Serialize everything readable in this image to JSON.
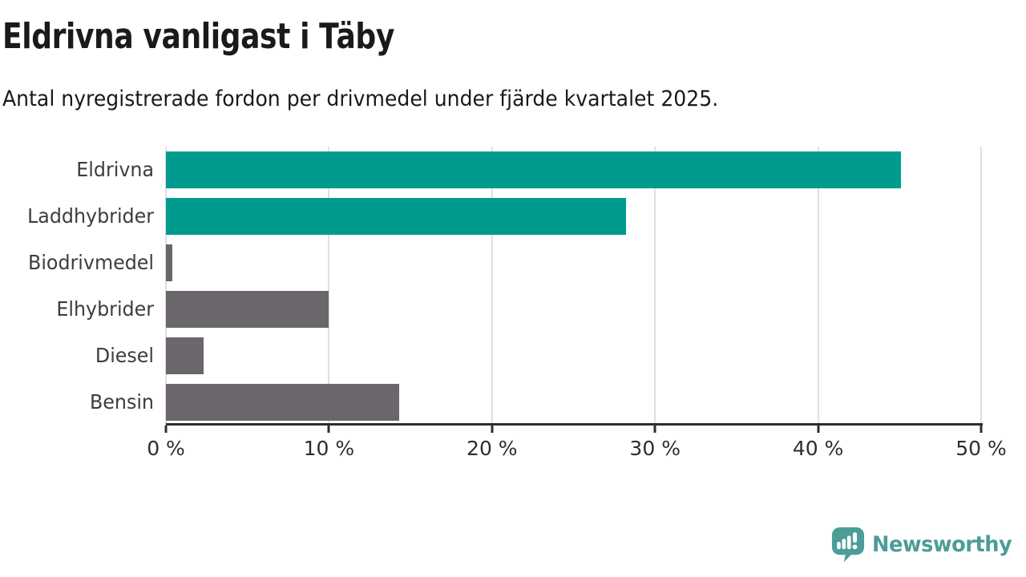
{
  "header": {
    "title": "Eldrivna vanligast i Täby",
    "subtitle": "Antal nyregistrerade fordon per drivmedel under fjärde kvartalet 2025."
  },
  "chart_data": {
    "type": "bar",
    "orientation": "horizontal",
    "title": "Eldrivna vanligast i Täby",
    "subtitle": "Antal nyregistrerade fordon per drivmedel under fjärde kvartalet 2025.",
    "categories": [
      "Eldrivna",
      "Laddhybrider",
      "Biodrivmedel",
      "Elhybrider",
      "Diesel",
      "Bensin"
    ],
    "values": [
      45.1,
      28.2,
      0.4,
      10.0,
      2.3,
      14.3
    ],
    "unit": "%",
    "bar_colors": [
      "#009b8f",
      "#009b8f",
      "#6a666b",
      "#6a666b",
      "#6a666b",
      "#6a666b"
    ],
    "xlim": [
      0,
      50
    ],
    "x_ticks": [
      0,
      10,
      20,
      30,
      40,
      50
    ],
    "x_tick_labels": [
      "0 %",
      "10 %",
      "20 %",
      "30 %",
      "40 %",
      "50 %"
    ],
    "grid": "vertical-gridlines-at-ticks",
    "legend": "none",
    "xlabel": "",
    "ylabel": ""
  },
  "colors": {
    "accent_teal": "#009b8f",
    "bar_gray": "#6a666b",
    "gridline": "#e0e0e0",
    "axis": "#2e2e2e",
    "text_dark": "#1a1a1a",
    "label_gray": "#3d3d3d",
    "logo_teal": "#4d9c98"
  },
  "footer": {
    "brand": "Newsworthy",
    "logo_icon": "speech-bubble-with-bar-chart-and-exclamation"
  }
}
